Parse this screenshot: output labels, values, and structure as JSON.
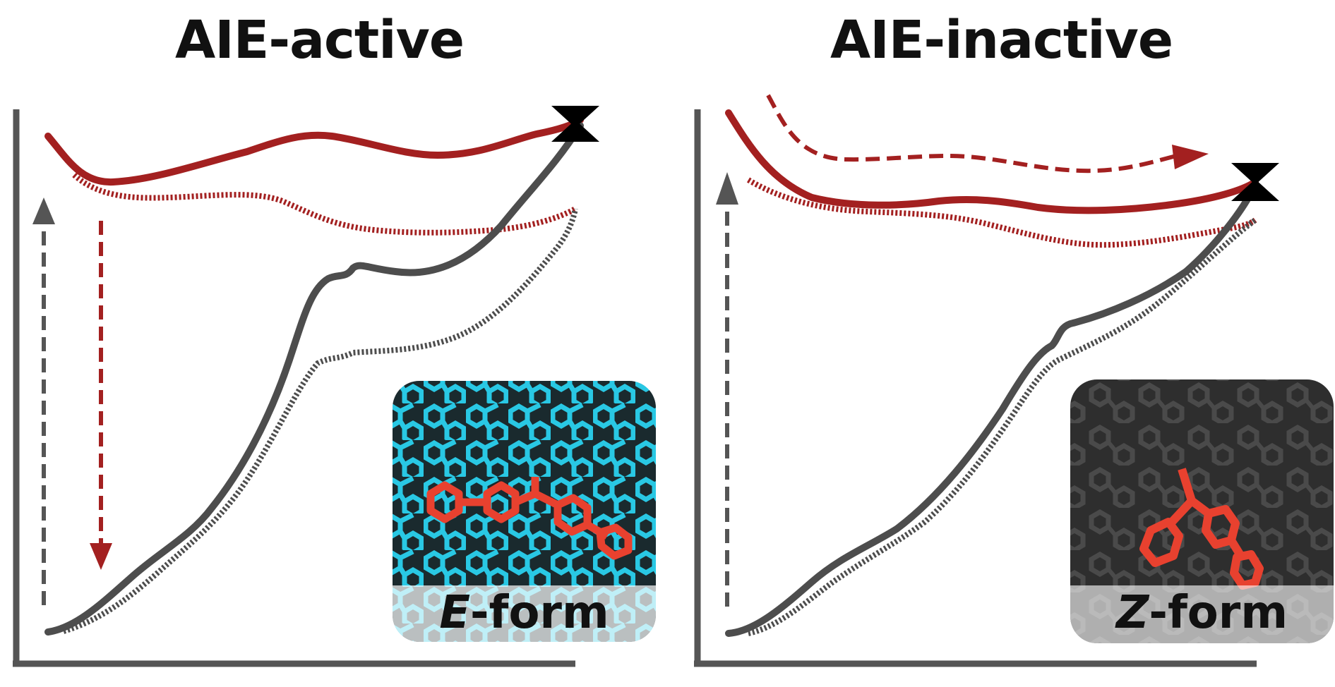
{
  "panels": [
    {
      "title": "AIE-active",
      "inset": {
        "letter": "E",
        "suffix": "-form"
      }
    },
    {
      "title": "AIE-inactive",
      "inset": {
        "letter": "Z",
        "suffix": "-form"
      }
    }
  ],
  "colors": {
    "excited_state": "#a32020",
    "ground_state": "#505050",
    "axes": "#555555",
    "e_form_background": "#27c4e0",
    "z_form_background": "#3a3a3a",
    "highlight_molecule": "#e8412f"
  },
  "icons": [
    "conical-intersection-icon",
    "absorption-arrow-icon",
    "emission-arrow-icon",
    "nonradiative-path-arrow-icon"
  ]
}
